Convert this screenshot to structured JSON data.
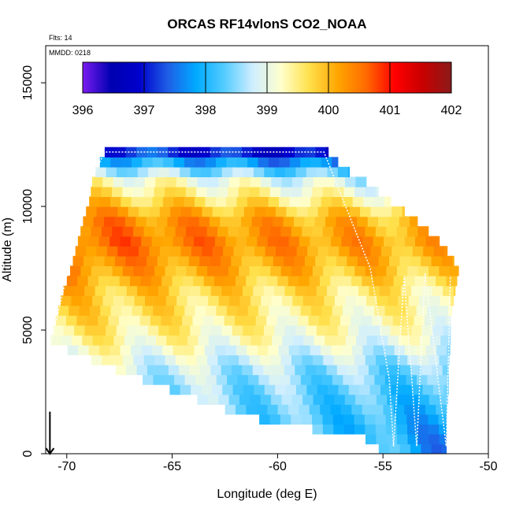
{
  "chart_data": {
    "type": "heatmap",
    "title": "ORCAS RF14vlonS CO2_NOAA",
    "annotations": [
      "Flts: 14",
      "MMDD: 0218"
    ],
    "xlabel": "Longitude (deg E)",
    "ylabel": "Altitude (m)",
    "xlim": [
      -71,
      -50
    ],
    "ylim": [
      0,
      16500
    ],
    "x_ticks": [
      -70,
      -65,
      -60,
      -55,
      -50
    ],
    "y_ticks": [
      0,
      5000,
      10000,
      15000
    ],
    "colorbar": {
      "min": 396,
      "max": 402,
      "ticks": [
        396,
        397,
        398,
        399,
        400,
        401,
        402
      ],
      "colors": [
        "#7a1cf0",
        "#0000b0",
        "#0000cd",
        "#1e5fe6",
        "#00aaff",
        "#55ccff",
        "#cfeeff",
        "#ffffcc",
        "#ffe04a",
        "#ffa500",
        "#ff6a00",
        "#ff0000",
        "#c80000",
        "#8b1a1a"
      ]
    },
    "altitude_levels": [
      {
        "alt": 12200,
        "lon_range": [
          -68.2,
          -57.6
        ],
        "value": 397.3
      },
      {
        "alt": 11500,
        "lon_range": [
          -68.6,
          -56.8
        ],
        "value": 398.6
      },
      {
        "alt": 11000,
        "lon_range": [
          -68.8,
          -55.8
        ],
        "value": 399.3
      },
      {
        "alt": 10300,
        "lon_range": [
          -68.9,
          -54.8
        ],
        "value": 399.8
      },
      {
        "alt": 9500,
        "lon_range": [
          -69.2,
          -53.5
        ],
        "value": 400.4
      },
      {
        "alt": 8500,
        "lon_range": [
          -69.5,
          -52.2
        ],
        "value": 400.6
      },
      {
        "alt": 7500,
        "lon_range": [
          -69.8,
          -51.4
        ],
        "value": 400.3
      },
      {
        "alt": 6500,
        "lon_range": [
          -70.2,
          -51.6
        ],
        "value": 399.9
      },
      {
        "alt": 5500,
        "lon_range": [
          -70.5,
          -51.8
        ],
        "value": 399.7
      },
      {
        "alt": 4500,
        "lon_range": [
          -70.8,
          -51.8
        ],
        "value": 399.4
      },
      {
        "alt": 3500,
        "lon_range": [
          -68.0,
          -51.9
        ],
        "value": 398.9
      },
      {
        "alt": 2500,
        "lon_range": [
          -64.8,
          -51.9
        ],
        "value": 398.6
      },
      {
        "alt": 1500,
        "lon_range": [
          -61.5,
          -52.0
        ],
        "value": 398.4
      },
      {
        "alt": 500,
        "lon_range": [
          -55.2,
          -52.0
        ],
        "value": 398.1
      }
    ],
    "flight_track": [
      [
        -70.8,
        4300
      ],
      [
        -69.0,
        10800
      ],
      [
        -68.2,
        12200
      ],
      [
        -57.8,
        12200
      ],
      [
        -55.6,
        7500
      ],
      [
        -54.7,
        3000
      ],
      [
        -54.5,
        300
      ],
      [
        -54.0,
        7200
      ],
      [
        -53.4,
        300
      ],
      [
        -53.0,
        7300
      ],
      [
        -52.0,
        300
      ],
      [
        -51.8,
        7200
      ]
    ],
    "arrow_marker": {
      "lon": -70.8,
      "alt": 700
    }
  }
}
